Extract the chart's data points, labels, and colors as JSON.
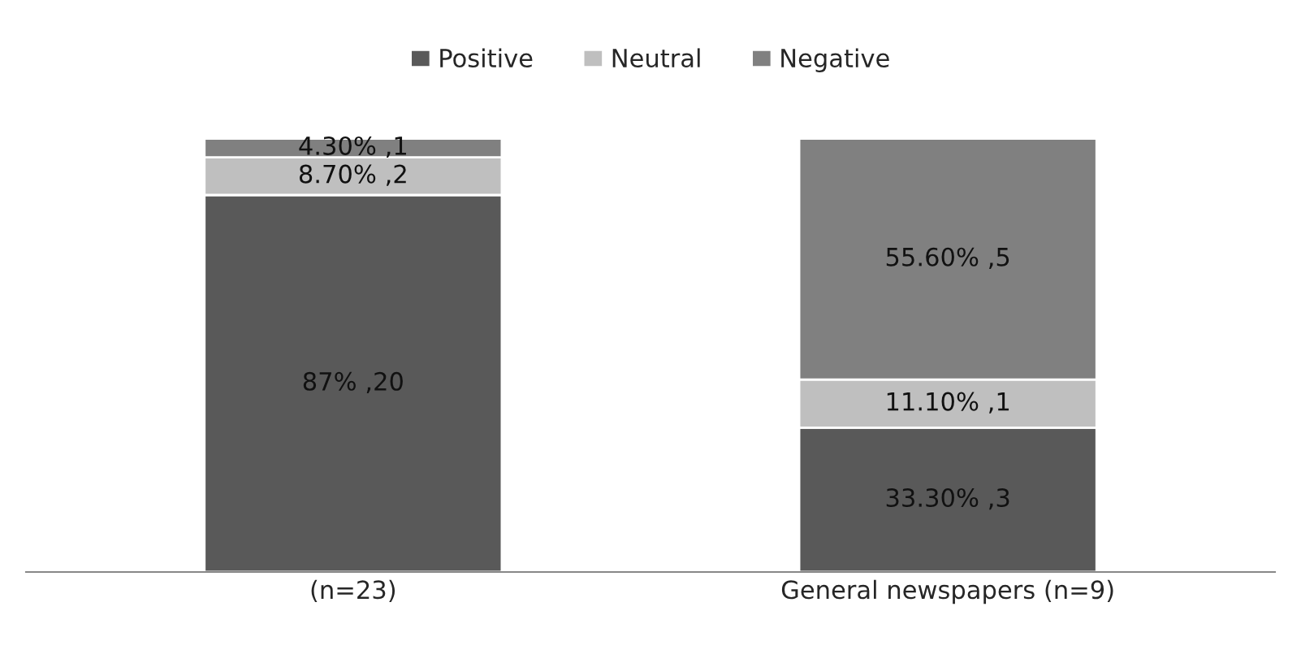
{
  "chart_data": {
    "type": "bar",
    "stacked": true,
    "categories": [
      "(n=23)",
      "General newspapers (n=9)"
    ],
    "series": [
      {
        "name": "Positive",
        "color": "#595959",
        "values": [
          87,
          33.3
        ],
        "value_labels": [
          "87% ,20",
          "33.30% ,3"
        ]
      },
      {
        "name": "Neutral",
        "color": "#bfbfbf",
        "values": [
          8.7,
          11.1
        ],
        "value_labels": [
          "8.70% ,2",
          "11.10% ,1"
        ]
      },
      {
        "name": "Negative",
        "color": "#808080",
        "values": [
          4.3,
          55.6
        ],
        "value_labels": [
          "4.30% ,1",
          "55.60% ,5"
        ]
      }
    ],
    "legend": "top",
    "grid": false,
    "tick_labels": "x"
  }
}
